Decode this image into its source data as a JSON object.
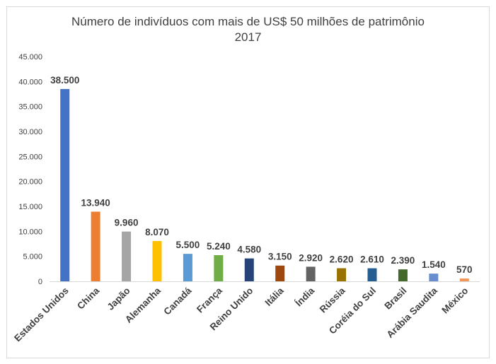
{
  "chart_data": {
    "type": "bar",
    "title": "Número de indivíduos com mais de US$ 50 milhões de patrimônio",
    "subtitle": "2017",
    "xlabel": "",
    "ylabel": "",
    "ylim": [
      0,
      45000
    ],
    "yticks": [
      0,
      5000,
      10000,
      15000,
      20000,
      25000,
      30000,
      35000,
      40000,
      45000
    ],
    "ytick_labels": [
      "0",
      "5.000",
      "10.000",
      "15.000",
      "20.000",
      "25.000",
      "30.000",
      "35.000",
      "40.000",
      "45.000"
    ],
    "grid": false,
    "categories": [
      "Estados Unidos",
      "China",
      "Japão",
      "Alemanha",
      "Canadá",
      "França",
      "Reino Unido",
      "Itália",
      "Índia",
      "Rússia",
      "Coréia do Sul",
      "Brasil",
      "Arábia Saudita",
      "México"
    ],
    "values": [
      38500,
      13940,
      9960,
      8070,
      5500,
      5240,
      4580,
      3150,
      2920,
      2620,
      2610,
      2390,
      1540,
      570
    ],
    "data_labels": [
      "38.500",
      "13.940",
      "9.960",
      "8.070",
      "5.500",
      "5.240",
      "4.580",
      "3.150",
      "2.920",
      "2.620",
      "2.610",
      "2.390",
      "1.540",
      "570"
    ],
    "colors": [
      "#4472C4",
      "#ED7D31",
      "#A5A5A5",
      "#FFC000",
      "#5B9BD5",
      "#70AD47",
      "#264478",
      "#9E480E",
      "#636363",
      "#997300",
      "#255E91",
      "#43682B",
      "#698ED0",
      "#F1975A"
    ]
  }
}
